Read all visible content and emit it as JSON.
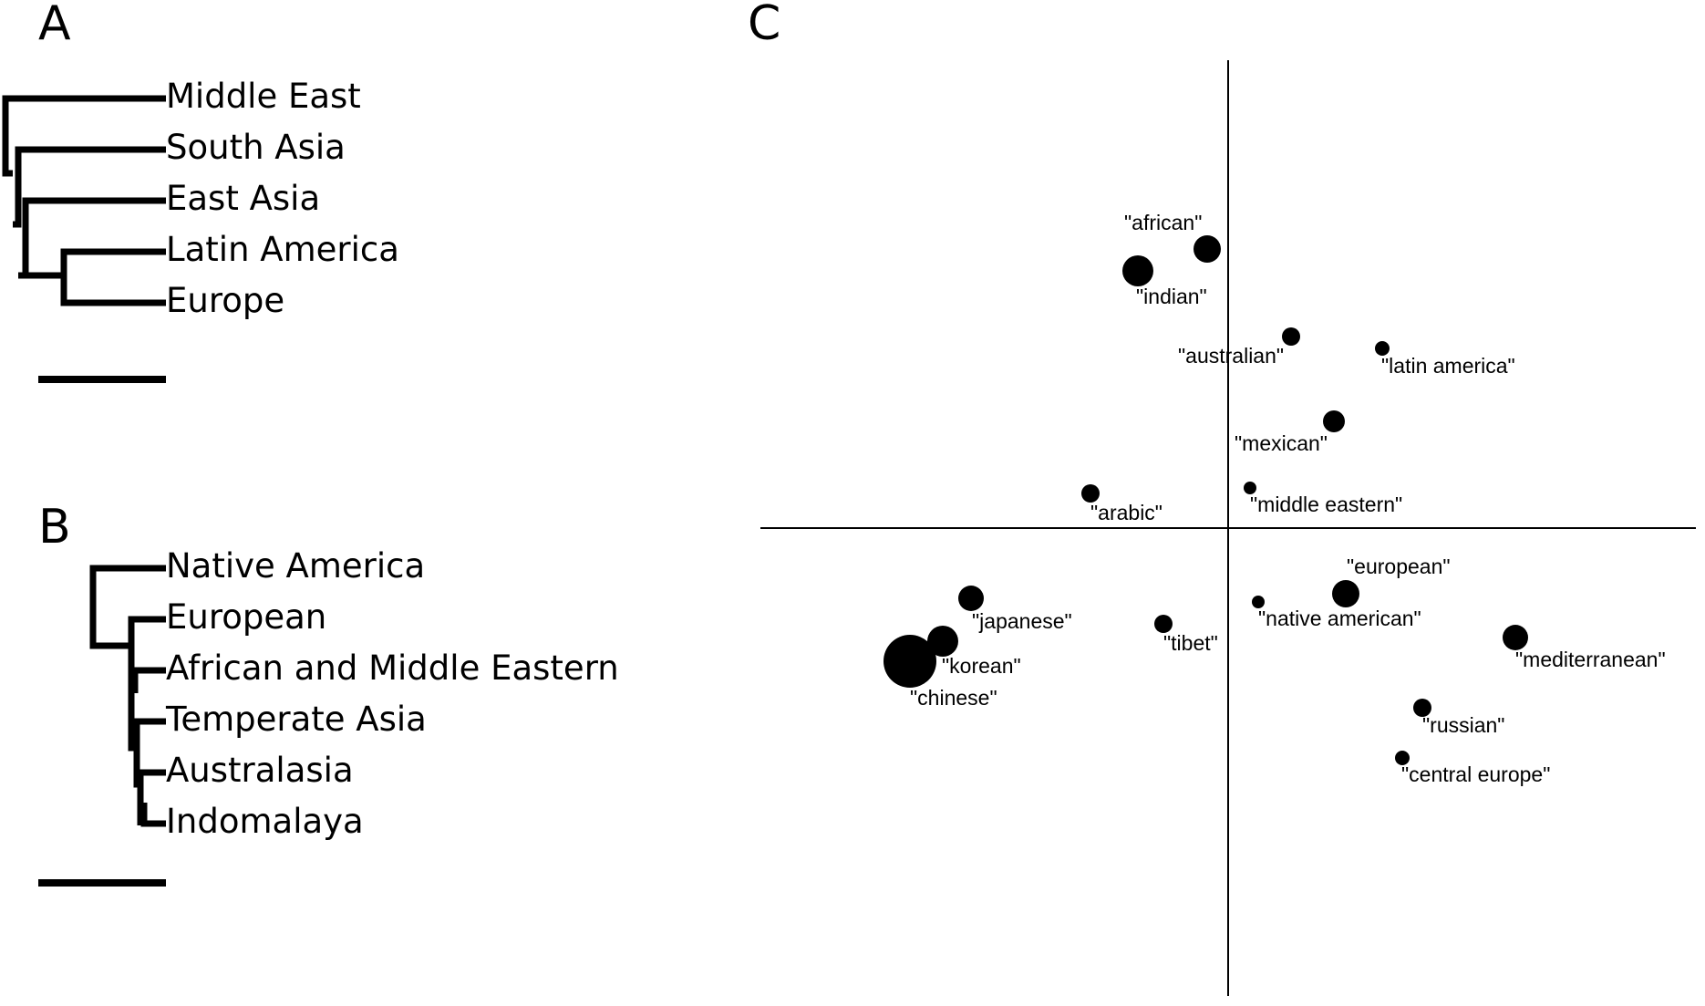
{
  "panels": {
    "a": {
      "letter": "A",
      "leaves": [
        "Middle East",
        "South Asia",
        "East Asia",
        "Latin America",
        "Europe"
      ]
    },
    "b": {
      "letter": "B",
      "leaves": [
        "Native America",
        "European",
        "African and Middle Eastern",
        "Temperate Asia",
        "Australasia",
        "Indomalaya"
      ]
    },
    "c": {
      "letter": "C",
      "points": [
        {
          "label": "\"african\""
        },
        {
          "label": "\"indian\""
        },
        {
          "label": "\"australian\""
        },
        {
          "label": "\"latin america\""
        },
        {
          "label": "\"mexican\""
        },
        {
          "label": "\"arabic\""
        },
        {
          "label": "\"middle eastern\""
        },
        {
          "label": "\"european\""
        },
        {
          "label": "\"japanese\""
        },
        {
          "label": "\"native american\""
        },
        {
          "label": "\"tibet\""
        },
        {
          "label": "\"korean\""
        },
        {
          "label": "\"chinese\""
        },
        {
          "label": "\"mediterranean\""
        },
        {
          "label": "\"russian\""
        },
        {
          "label": "\"central europe\""
        }
      ]
    }
  }
}
